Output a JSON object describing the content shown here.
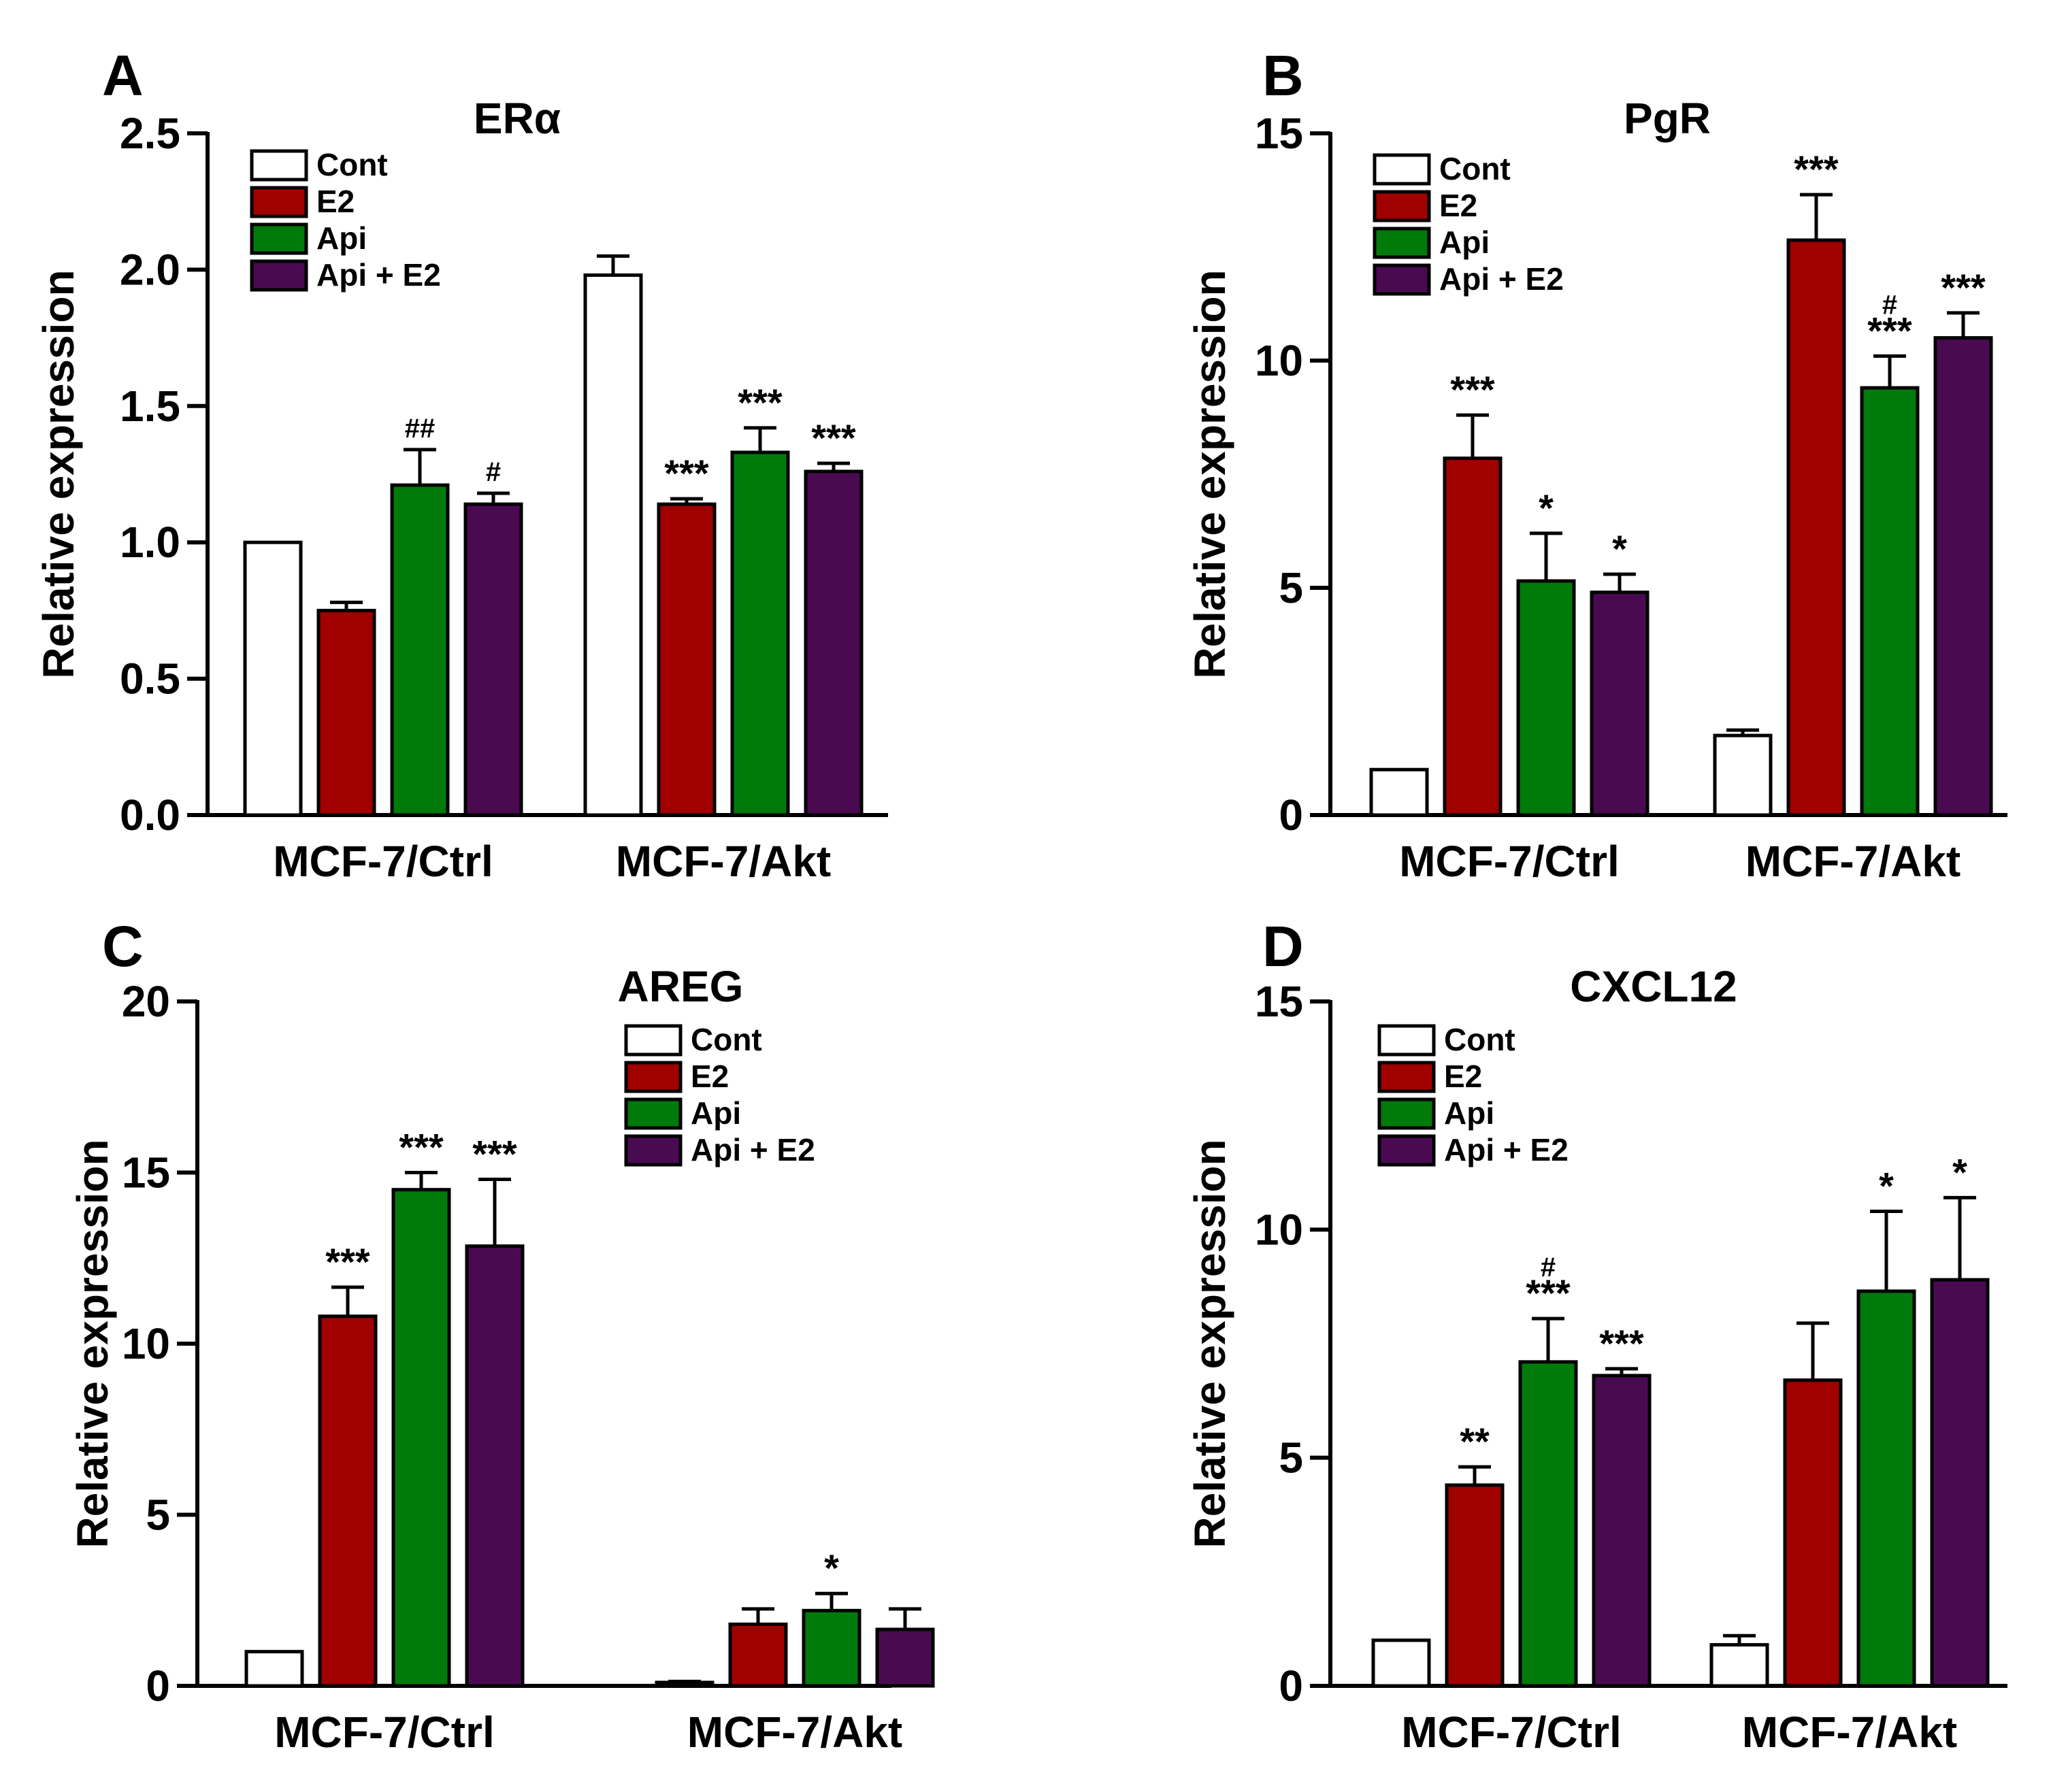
{
  "figure": {
    "colors": {
      "Cont": "#ffffff",
      "E2": "#a00000",
      "Api": "#007a0a",
      "Api + E2": "#4a0a52",
      "axis": "#000000"
    },
    "series_names": [
      "Cont",
      "E2",
      "Api",
      "Api + E2"
    ],
    "legend_symbols": [
      "",
      "",
      "",
      ""
    ]
  },
  "chart_data": [
    {
      "panel": "A",
      "type": "bar",
      "title": "ERα",
      "ylabel": "Relative expression",
      "xlabel": "",
      "ylim": [
        0,
        2.5
      ],
      "yticks": [
        0,
        0.5,
        1.0,
        1.5,
        2.0,
        2.5
      ],
      "ytick_labels": [
        "0.0",
        "0.5",
        "1.0",
        "1.5",
        "2.0",
        "2.5"
      ],
      "categories": [
        "MCF-7/Ctrl",
        "MCF-7/Akt"
      ],
      "legend_position": "top-left",
      "series": [
        {
          "name": "Cont",
          "values": [
            1.0,
            1.98
          ],
          "errors": [
            0,
            0.07
          ],
          "annotations": [
            "",
            ""
          ]
        },
        {
          "name": "E2",
          "values": [
            0.75,
            1.14
          ],
          "errors": [
            0.03,
            0.02
          ],
          "annotations": [
            "",
            "***"
          ]
        },
        {
          "name": "Api",
          "values": [
            1.21,
            1.33
          ],
          "errors": [
            0.13,
            0.09
          ],
          "annotations": [
            "##",
            "***"
          ]
        },
        {
          "name": "Api + E2",
          "values": [
            1.14,
            1.26
          ],
          "errors": [
            0.04,
            0.03
          ],
          "annotations": [
            "#",
            "***"
          ]
        }
      ]
    },
    {
      "panel": "B",
      "type": "bar",
      "title": "PgR",
      "ylabel": "Relative expression",
      "xlabel": "",
      "ylim": [
        0,
        15
      ],
      "yticks": [
        0,
        5,
        10,
        15
      ],
      "ytick_labels": [
        "0",
        "5",
        "10",
        "15"
      ],
      "categories": [
        "MCF-7/Ctrl",
        "MCF-7/Akt"
      ],
      "legend_position": "top-left",
      "series": [
        {
          "name": "Cont",
          "values": [
            1.0,
            1.75
          ],
          "errors": [
            0,
            0.12
          ],
          "annotations": [
            "",
            ""
          ]
        },
        {
          "name": "E2",
          "values": [
            7.85,
            12.65
          ],
          "errors": [
            0.95,
            1.0
          ],
          "annotations": [
            "***",
            "***"
          ]
        },
        {
          "name": "Api",
          "values": [
            5.15,
            9.4
          ],
          "errors": [
            1.05,
            0.7
          ],
          "annotations": [
            "*",
            "#\n***"
          ]
        },
        {
          "name": "Api + E2",
          "values": [
            4.9,
            10.5
          ],
          "errors": [
            0.4,
            0.55
          ],
          "annotations": [
            "*",
            "***"
          ]
        }
      ]
    },
    {
      "panel": "C",
      "type": "bar",
      "title": "AREG",
      "ylabel": "Relative expression",
      "xlabel": "",
      "ylim": [
        0,
        20
      ],
      "yticks": [
        0,
        5,
        10,
        15,
        20
      ],
      "ytick_labels": [
        "0",
        "5",
        "10",
        "15",
        "20"
      ],
      "categories": [
        "MCF-7/Ctrl",
        "MCF-7/Akt"
      ],
      "legend_position": "top-right",
      "series": [
        {
          "name": "Cont",
          "values": [
            1.0,
            0.1
          ],
          "errors": [
            0,
            0.03
          ],
          "annotations": [
            "",
            ""
          ]
        },
        {
          "name": "E2",
          "values": [
            10.8,
            1.8
          ],
          "errors": [
            0.85,
            0.45
          ],
          "annotations": [
            "***",
            ""
          ]
        },
        {
          "name": "Api",
          "values": [
            14.5,
            2.2
          ],
          "errors": [
            0.5,
            0.5
          ],
          "annotations": [
            "***",
            "*"
          ]
        },
        {
          "name": "Api + E2",
          "values": [
            12.85,
            1.65
          ],
          "errors": [
            1.95,
            0.6
          ],
          "annotations": [
            "***",
            ""
          ]
        }
      ]
    },
    {
      "panel": "D",
      "type": "bar",
      "title": "CXCL12",
      "ylabel": "Relative expression",
      "xlabel": "",
      "ylim": [
        0,
        15
      ],
      "yticks": [
        0,
        5,
        10,
        15
      ],
      "ytick_labels": [
        "0",
        "5",
        "10",
        "15"
      ],
      "categories": [
        "MCF-7/Ctrl",
        "MCF-7/Akt"
      ],
      "legend_position": "top-left",
      "series": [
        {
          "name": "Cont",
          "values": [
            1.0,
            0.9
          ],
          "errors": [
            0,
            0.2
          ],
          "annotations": [
            "",
            ""
          ]
        },
        {
          "name": "E2",
          "values": [
            4.4,
            6.7
          ],
          "errors": [
            0.4,
            1.25
          ],
          "annotations": [
            "**",
            ""
          ]
        },
        {
          "name": "Api",
          "values": [
            7.1,
            8.65
          ],
          "errors": [
            0.95,
            1.75
          ],
          "annotations": [
            "#\n***",
            "*"
          ]
        },
        {
          "name": "Api + E2",
          "values": [
            6.8,
            8.9
          ],
          "errors": [
            0.15,
            1.8
          ],
          "annotations": [
            "***",
            "*"
          ]
        }
      ]
    }
  ]
}
